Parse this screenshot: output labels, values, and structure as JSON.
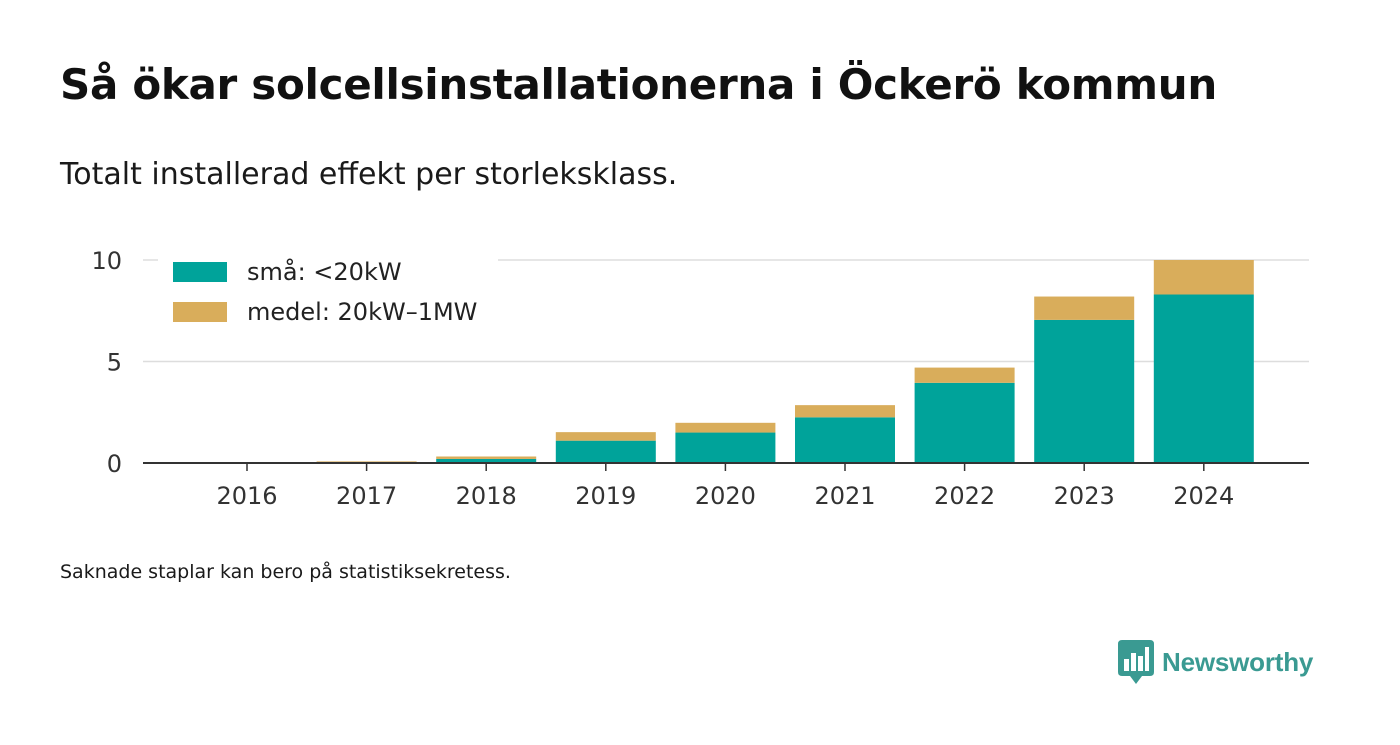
{
  "title": "Så ökar solcellsinstallationerna i Öckerö kommun",
  "subtitle": "Totalt installerad effekt per storleksklass.",
  "footnote": "Saknade staplar kan bero på statistiksekretess.",
  "brand": {
    "name": "Newsworthy",
    "logo_icon": "bar-chart-speech-bubble-icon",
    "color": "#3a9a92"
  },
  "colors": {
    "small": "#00a39a",
    "medium": "#d9ad5b",
    "grid": "#dddddd",
    "axis": "#333333",
    "text": "#333333"
  },
  "chart_data": {
    "type": "bar",
    "stacked": true,
    "title": "Så ökar solcellsinstallationerna i Öckerö kommun",
    "subtitle": "Totalt installerad effekt per storleksklass.",
    "xlabel": "",
    "ylabel": "",
    "categories": [
      "2016",
      "2017",
      "2018",
      "2019",
      "2020",
      "2021",
      "2022",
      "2023",
      "2024"
    ],
    "series": [
      {
        "name": "små: <20kW",
        "values": [
          0.02,
          0.05,
          0.2,
          1.1,
          1.5,
          2.25,
          3.95,
          7.05,
          8.3
        ]
      },
      {
        "name": "medel: 20kW–1MW",
        "values": [
          0.0,
          0.03,
          0.12,
          0.42,
          0.48,
          0.6,
          0.75,
          1.15,
          1.7
        ]
      }
    ],
    "ylim": [
      0,
      10
    ],
    "yticks": [
      "0",
      "5",
      "10"
    ],
    "grid": true,
    "legend": "top-left"
  }
}
